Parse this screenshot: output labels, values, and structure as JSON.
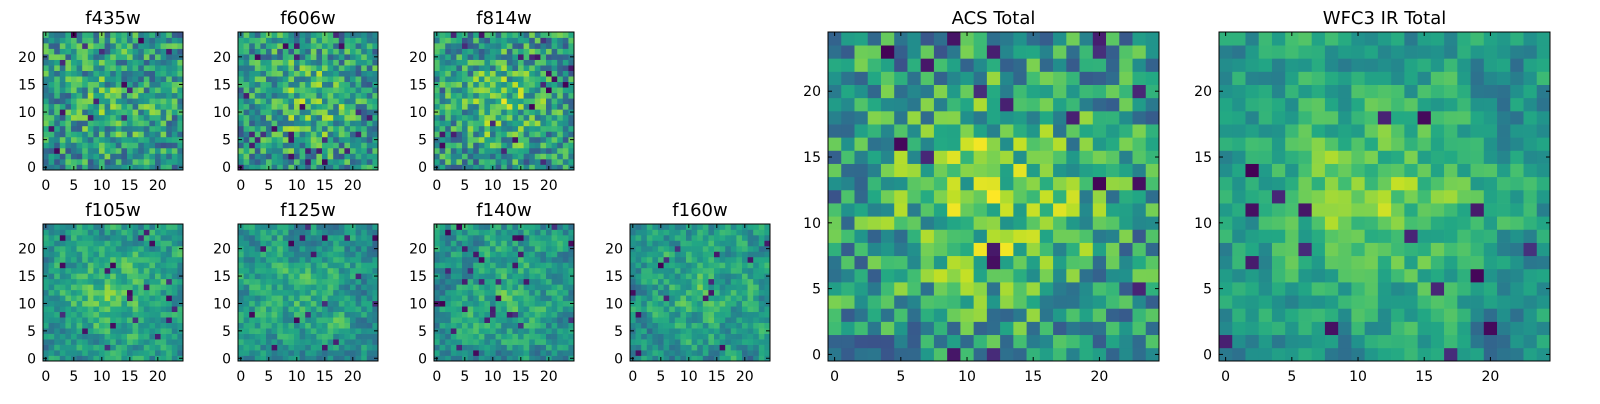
{
  "colormap": "viridis",
  "colors": {
    "frame": "#000000",
    "background": "#ffffff"
  },
  "chart_data": [
    {
      "type": "heatmap",
      "title": "f435w",
      "xlim": [
        -0.5,
        24.5
      ],
      "ylim": [
        -0.5,
        24.5
      ],
      "xticks": [
        0,
        5,
        10,
        15,
        20
      ],
      "yticks": [
        0,
        5,
        10,
        15,
        20
      ],
      "grid": false,
      "grid_shape": [
        25,
        25
      ],
      "pattern": "noise",
      "seed": 11,
      "center_boost": 0.12
    },
    {
      "type": "heatmap",
      "title": "f606w",
      "xlim": [
        -0.5,
        24.5
      ],
      "ylim": [
        -0.5,
        24.5
      ],
      "xticks": [
        0,
        5,
        10,
        15,
        20
      ],
      "yticks": [
        0,
        5,
        10,
        15,
        20
      ],
      "grid": false,
      "grid_shape": [
        25,
        25
      ],
      "pattern": "noise",
      "seed": 23,
      "center_boost": 0.18
    },
    {
      "type": "heatmap",
      "title": "f814w",
      "xlim": [
        -0.5,
        24.5
      ],
      "ylim": [
        -0.5,
        24.5
      ],
      "xticks": [
        0,
        5,
        10,
        15,
        20
      ],
      "yticks": [
        0,
        5,
        10,
        15,
        20
      ],
      "grid": false,
      "grid_shape": [
        25,
        25
      ],
      "pattern": "noise",
      "seed": 37,
      "center_boost": 0.2
    },
    {
      "type": "heatmap",
      "title": "f105w",
      "xlim": [
        -0.5,
        24.5
      ],
      "ylim": [
        -0.5,
        24.5
      ],
      "xticks": [
        0,
        5,
        10,
        15,
        20
      ],
      "yticks": [
        0,
        5,
        10,
        15,
        20
      ],
      "grid": false,
      "grid_shape": [
        25,
        25
      ],
      "pattern": "smooth",
      "seed": 41,
      "center_boost": 0.22
    },
    {
      "type": "heatmap",
      "title": "f125w",
      "xlim": [
        -0.5,
        24.5
      ],
      "ylim": [
        -0.5,
        24.5
      ],
      "xticks": [
        0,
        5,
        10,
        15,
        20
      ],
      "yticks": [
        0,
        5,
        10,
        15,
        20
      ],
      "grid": false,
      "grid_shape": [
        25,
        25
      ],
      "pattern": "smooth",
      "seed": 53,
      "center_boost": 0.1
    },
    {
      "type": "heatmap",
      "title": "f140w",
      "xlim": [
        -0.5,
        24.5
      ],
      "ylim": [
        -0.5,
        24.5
      ],
      "xticks": [
        0,
        5,
        10,
        15,
        20
      ],
      "yticks": [
        0,
        5,
        10,
        15,
        20
      ],
      "grid": false,
      "grid_shape": [
        25,
        25
      ],
      "pattern": "smooth",
      "seed": 67,
      "center_boost": 0.12
    },
    {
      "type": "heatmap",
      "title": "f160w",
      "xlim": [
        -0.5,
        24.5
      ],
      "ylim": [
        -0.5,
        24.5
      ],
      "xticks": [
        0,
        5,
        10,
        15,
        20
      ],
      "yticks": [
        0,
        5,
        10,
        15,
        20
      ],
      "grid": false,
      "grid_shape": [
        25,
        25
      ],
      "pattern": "smooth",
      "seed": 79,
      "center_boost": 0.14
    },
    {
      "type": "heatmap",
      "title": "ACS Total",
      "xlim": [
        -0.5,
        24.5
      ],
      "ylim": [
        -0.5,
        24.5
      ],
      "xticks": [
        0,
        5,
        10,
        15,
        20
      ],
      "yticks": [
        0,
        5,
        10,
        15,
        20
      ],
      "grid": false,
      "grid_shape": [
        25,
        25
      ],
      "pattern": "noise",
      "seed": 97,
      "center_boost": 0.28
    },
    {
      "type": "heatmap",
      "title": "WFC3 IR Total",
      "xlim": [
        -0.5,
        24.5
      ],
      "ylim": [
        -0.5,
        24.5
      ],
      "xticks": [
        0,
        5,
        10,
        15,
        20
      ],
      "yticks": [
        0,
        5,
        10,
        15,
        20
      ],
      "grid": false,
      "grid_shape": [
        25,
        25
      ],
      "pattern": "smooth",
      "seed": 131,
      "center_boost": 0.3
    }
  ]
}
